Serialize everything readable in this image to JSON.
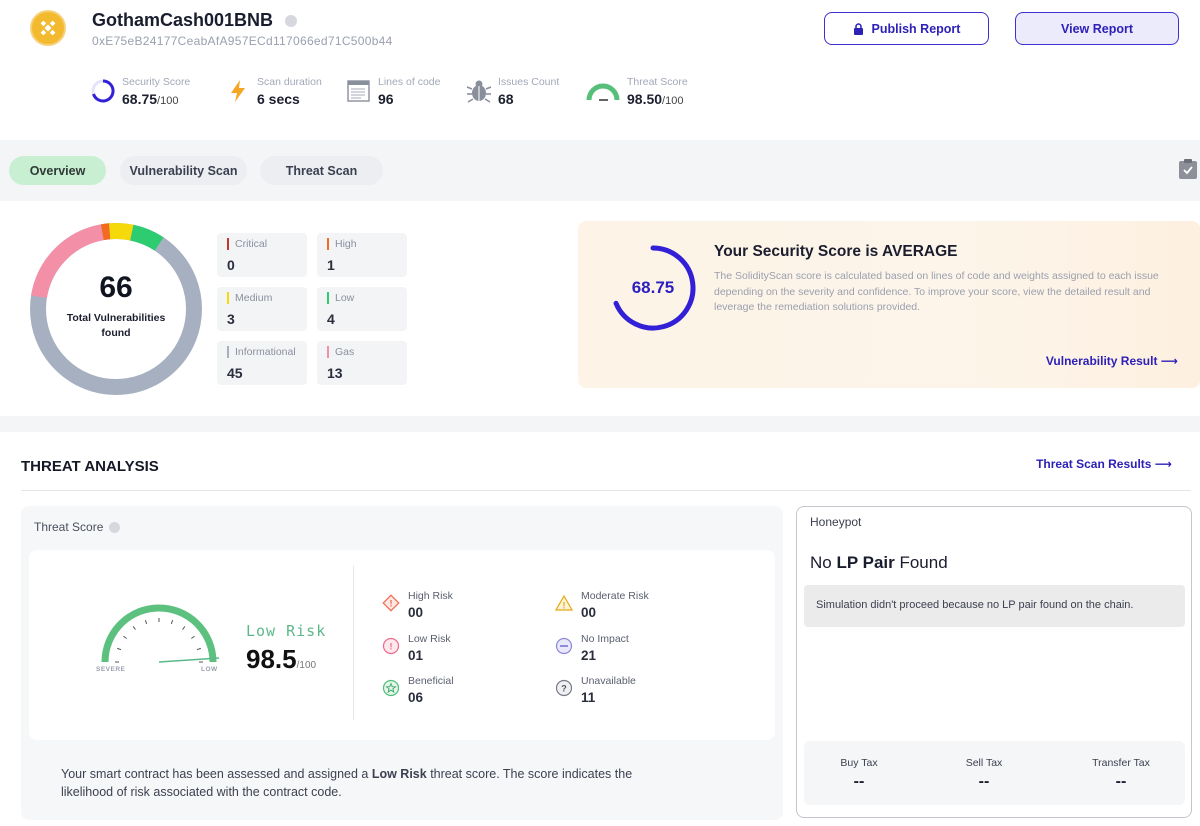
{
  "header": {
    "name": "GothamCash001BNB",
    "address": "0xE75eB24177CeabAfA957ECd117066ed71C500b44",
    "publish_label": "Publish Report",
    "view_label": "View Report"
  },
  "stats": {
    "security": {
      "label": "Security Score",
      "value": "68.75",
      "suffix": "/100"
    },
    "duration": {
      "label": "Scan duration",
      "value": "6 secs"
    },
    "lines": {
      "label": "Lines of code",
      "value": "96"
    },
    "issues": {
      "label": "Issues Count",
      "value": "68"
    },
    "threat": {
      "label": "Threat Score",
      "value": "98.50",
      "suffix": "/100"
    }
  },
  "tabs": [
    "Overview",
    "Vulnerability Scan",
    "Threat Scan"
  ],
  "overview": {
    "total": "66",
    "total_label": "Total Vulnerabilities found",
    "severities": {
      "critical": {
        "label": "Critical",
        "value": "0",
        "color": "#c0392b"
      },
      "high": {
        "label": "High",
        "value": "1",
        "color": "#f36b21"
      },
      "medium": {
        "label": "Medium",
        "value": "3",
        "color": "#f5d90a"
      },
      "low": {
        "label": "Low",
        "value": "4",
        "color": "#2ecc71"
      },
      "informational": {
        "label": "Informational",
        "value": "45",
        "color": "#a6b0c0"
      },
      "gas": {
        "label": "Gas",
        "value": "13",
        "color": "#f48fa8"
      }
    },
    "score": {
      "value": "68.75",
      "fraction": 0.6875,
      "title": "Your Security Score is AVERAGE",
      "description": "The SolidityScan score is calculated based on lines of code and weights assigned to each issue depending on the severity and confidence. To improve your score, view the detailed result and leverage the remediation solutions provided.",
      "link": "Vulnerability Result ⟶"
    }
  },
  "threat_analysis": {
    "title": "THREAT ANALYSIS",
    "link": "Threat Scan Results ⟶",
    "score_label": "Threat Score",
    "gauge_severe": "SEVERE",
    "gauge_low": "LOW",
    "risk_word": "Low Risk",
    "risk_value": "98.5",
    "risk_suffix": "/100",
    "risks": {
      "high": {
        "label": "High Risk",
        "value": "00"
      },
      "moderate": {
        "label": "Moderate Risk",
        "value": "00"
      },
      "low": {
        "label": "Low Risk",
        "value": "01"
      },
      "no_impact": {
        "label": "No Impact",
        "value": "21"
      },
      "beneficial": {
        "label": "Beneficial",
        "value": "06"
      },
      "unavailable": {
        "label": "Unavailable",
        "value": "11"
      }
    },
    "note_pre": "Your smart contract has been assessed and assigned a ",
    "note_bold": "Low Risk",
    "note_post": " threat score. The score indicates the likelihood of risk associated with the contract code."
  },
  "honeypot": {
    "title": "Honeypot",
    "head_pre": "No ",
    "head_bold": "LP Pair",
    "head_post": " Found",
    "note": "Simulation didn't proceed because no LP pair found on the chain.",
    "taxes": {
      "buy": {
        "label": "Buy Tax",
        "value": "--"
      },
      "sell": {
        "label": "Sell Tax",
        "value": "--"
      },
      "transfer": {
        "label": "Transfer Tax",
        "value": "--"
      }
    }
  }
}
